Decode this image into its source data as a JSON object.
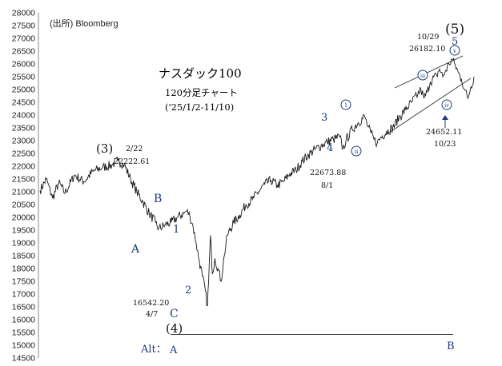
{
  "source": "(出所) Bloomberg",
  "title": "ナスダック100",
  "subtitle": "120分足チャート",
  "period": "('25/1/2-11/10)",
  "alt_label": "Alt：",
  "colors": {
    "line": "#1a1a1a",
    "wave": "#1f3a7a",
    "annot": "#111111",
    "channel": "#333333",
    "axis": "#888888"
  },
  "chart_data": {
    "type": "line",
    "ylim": [
      14500,
      28000
    ],
    "yticks": [
      14500,
      15000,
      15500,
      16000,
      16500,
      17000,
      17500,
      18000,
      18500,
      19000,
      19500,
      20000,
      20500,
      21000,
      21500,
      22000,
      22500,
      23000,
      23500,
      24000,
      24500,
      25000,
      25500,
      26000,
      26500,
      27000,
      27500,
      28000
    ],
    "series": [
      {
        "name": "",
        "anchors": [
          [
            0,
            21050
          ],
          [
            2,
            21500
          ],
          [
            4,
            20750
          ],
          [
            6,
            21350
          ],
          [
            8,
            20950
          ],
          [
            11,
            21650
          ],
          [
            14,
            21400
          ],
          [
            17,
            21800
          ],
          [
            20,
            21950
          ],
          [
            23,
            22050
          ],
          [
            25,
            22223
          ],
          [
            27,
            22050
          ],
          [
            29,
            21500
          ],
          [
            31,
            21000
          ],
          [
            33,
            20600
          ],
          [
            35,
            20150
          ],
          [
            37,
            19800
          ],
          [
            38,
            19550
          ],
          [
            40,
            19700
          ],
          [
            42,
            19800
          ],
          [
            44,
            20000
          ],
          [
            46,
            20150
          ],
          [
            47,
            20250
          ],
          [
            48,
            20050
          ],
          [
            49,
            19650
          ],
          [
            50,
            19000
          ],
          [
            51,
            18300
          ],
          [
            52,
            17700
          ],
          [
            53,
            17100
          ],
          [
            53.6,
            16542
          ],
          [
            54,
            17500
          ],
          [
            54.6,
            19300
          ],
          [
            55.2,
            17800
          ],
          [
            56,
            18400
          ],
          [
            57,
            18000
          ],
          [
            58,
            17500
          ],
          [
            59,
            18500
          ],
          [
            60,
            19300
          ],
          [
            62,
            19800
          ],
          [
            64,
            20100
          ],
          [
            66,
            20500
          ],
          [
            68,
            20700
          ],
          [
            70,
            21000
          ],
          [
            72,
            21300
          ],
          [
            74,
            21450
          ],
          [
            76,
            21250
          ],
          [
            78,
            21400
          ],
          [
            80,
            21700
          ],
          [
            82,
            21850
          ],
          [
            84,
            22200
          ],
          [
            86,
            22450
          ],
          [
            88,
            22650
          ],
          [
            90,
            22800
          ],
          [
            92,
            22950
          ],
          [
            94,
            23050
          ],
          [
            96,
            23150
          ],
          [
            97,
            22674
          ],
          [
            98,
            23000
          ],
          [
            100,
            23450
          ],
          [
            102,
            23700
          ],
          [
            104,
            23950
          ],
          [
            105,
            23550
          ],
          [
            106,
            23300
          ],
          [
            107,
            23050
          ],
          [
            108,
            22900
          ],
          [
            109,
            23100
          ],
          [
            111,
            23350
          ],
          [
            113,
            23500
          ],
          [
            115,
            23900
          ],
          [
            117,
            24200
          ],
          [
            119,
            24500
          ],
          [
            121,
            24800
          ],
          [
            122,
            25000
          ],
          [
            123,
            24650
          ],
          [
            124,
            24900
          ],
          [
            125,
            25300
          ],
          [
            127,
            25550
          ],
          [
            128,
            25800
          ],
          [
            129,
            25500
          ],
          [
            130,
            25750
          ],
          [
            131,
            26000
          ],
          [
            132,
            26182
          ],
          [
            133,
            25950
          ],
          [
            134,
            25650
          ],
          [
            135,
            25400
          ],
          [
            136,
            25000
          ],
          [
            137,
            24652
          ],
          [
            138,
            25100
          ],
          [
            139,
            25500
          ]
        ],
        "xlim": [
          0,
          139
        ],
        "seed": 7
      }
    ],
    "wave_labels": [
      "(3)",
      "A",
      "B",
      "C",
      "(4)",
      "1",
      "2",
      "3",
      "4",
      "5",
      "(5)",
      "A",
      "B"
    ],
    "sub_wave_labels": [
      "i",
      "ii",
      "iii",
      "iv",
      "v"
    ],
    "annotations": [
      {
        "date": "2/22",
        "value": "22222.61"
      },
      {
        "date": "4/7",
        "value": "16542.20"
      },
      {
        "date": "8/1",
        "value": "22673.88"
      },
      {
        "date": "10/29",
        "value": "26182.10"
      },
      {
        "date": "10/23",
        "value": "24652.11"
      }
    ]
  }
}
